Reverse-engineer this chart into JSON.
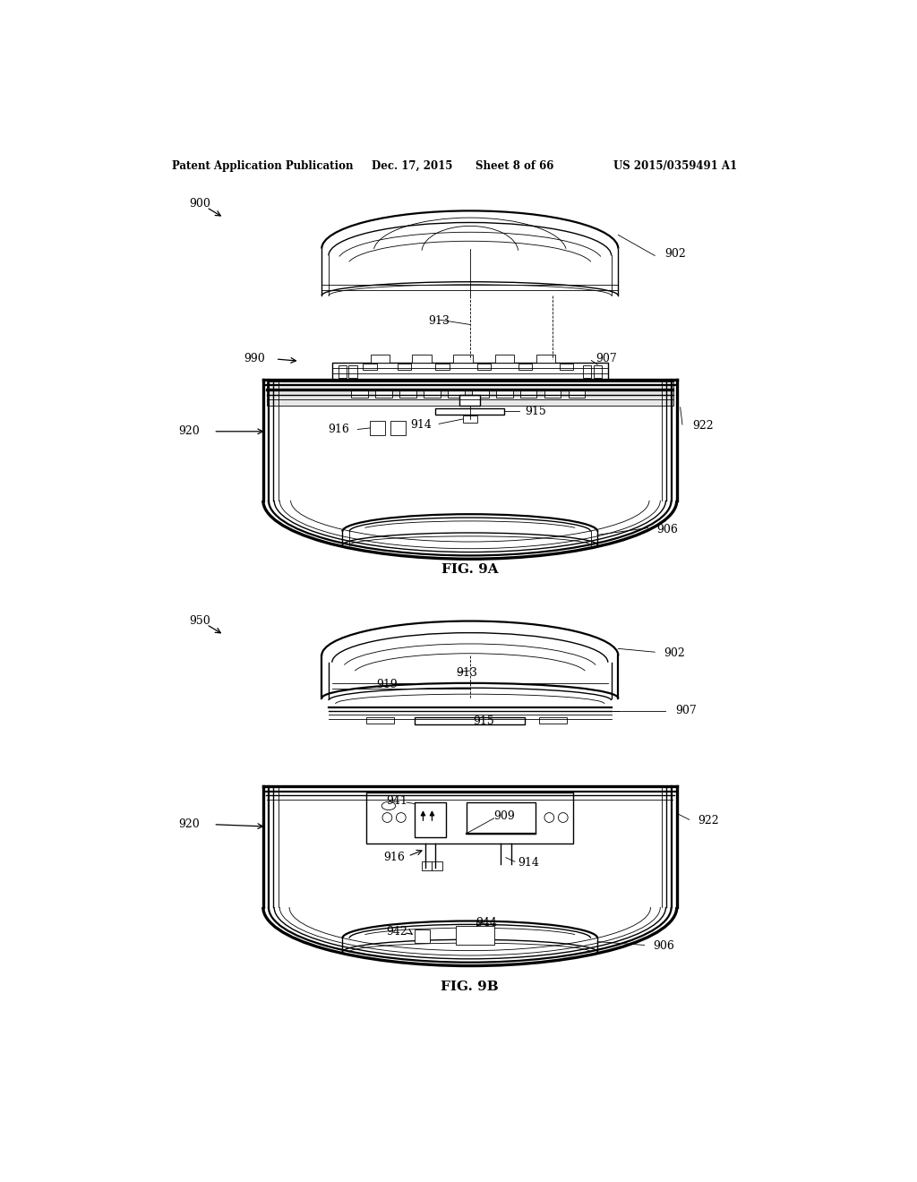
{
  "background_color": "#ffffff",
  "line_color": "#000000",
  "header_text": "Patent Application Publication",
  "header_date": "Dec. 17, 2015",
  "header_sheet": "Sheet 8 of 66",
  "header_patent": "US 2015/0359491 A1",
  "fig9a_label": "FIG. 9A",
  "fig9b_label": "FIG. 9B"
}
